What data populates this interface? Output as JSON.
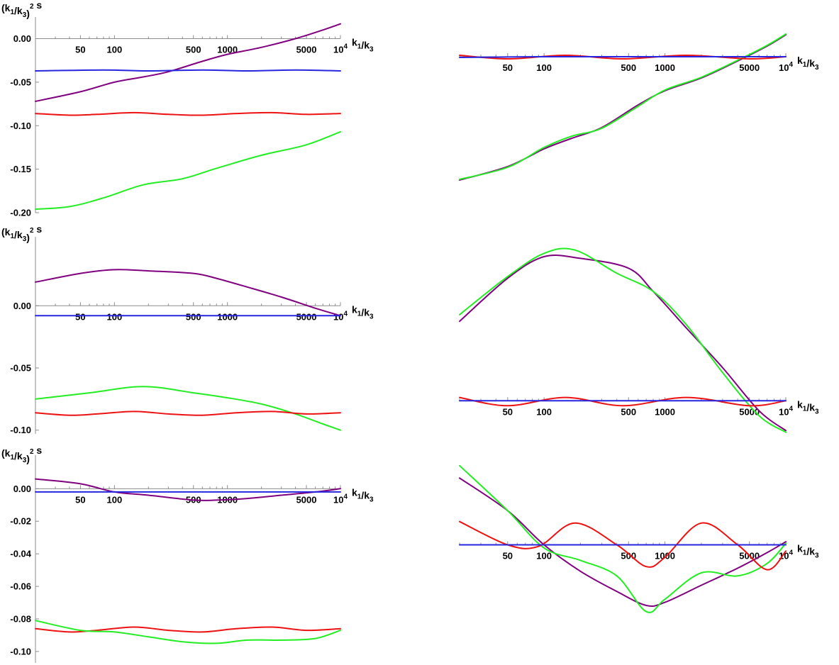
{
  "colors": {
    "purple": "#800080",
    "blue": "#2626e0",
    "red": "#ee1111",
    "green": "#22ee22",
    "axis": "#8c8c8c"
  },
  "chart_data": [
    {
      "type": "line",
      "panel": "row 1, left",
      "xscale": "log",
      "xlim": [
        20,
        10000
      ],
      "ylim": [
        -0.2,
        0.02
      ],
      "ylabel": "(k1/k3)^2 s",
      "xlabel": "k1/k3",
      "xticks": [
        "50",
        "100",
        "500",
        "1000",
        "5000",
        "10^4"
      ],
      "yticks": [
        "0.00",
        "-0.05",
        "-0.10",
        "-0.15",
        "-0.20"
      ],
      "ytick_values": [
        0,
        -0.05,
        -0.1,
        -0.15,
        -0.2
      ],
      "series": [
        {
          "color": "purple",
          "x": [
            20,
            50,
            100,
            180,
            300,
            600,
            1000,
            2000,
            4000,
            7000,
            10000
          ],
          "y": [
            -0.072,
            -0.061,
            -0.05,
            -0.044,
            -0.038,
            -0.026,
            -0.018,
            -0.01,
            0.0,
            0.01,
            0.017
          ]
        },
        {
          "color": "blue",
          "x": [
            20,
            80,
            200,
            600,
            1500,
            4000,
            10000
          ],
          "y": [
            -0.037,
            -0.036,
            -0.037,
            -0.036,
            -0.037,
            -0.036,
            -0.037
          ]
        },
        {
          "color": "red",
          "x": [
            20,
            40,
            70,
            150,
            300,
            600,
            1200,
            2500,
            5000,
            10000
          ],
          "y": [
            -0.086,
            -0.088,
            -0.087,
            -0.085,
            -0.087,
            -0.088,
            -0.086,
            -0.085,
            -0.087,
            -0.086
          ]
        },
        {
          "color": "green",
          "x": [
            20,
            40,
            80,
            180,
            400,
            800,
            2000,
            5000,
            10000
          ],
          "y": [
            -0.196,
            -0.193,
            -0.183,
            -0.168,
            -0.161,
            -0.149,
            -0.134,
            -0.122,
            -0.107
          ]
        }
      ]
    },
    {
      "type": "line",
      "panel": "row 1, right",
      "xscale": "log",
      "xlim": [
        20,
        10000
      ],
      "ylim": [
        -0.19,
        0.05
      ],
      "xlabel": "k1/k3",
      "xticks": [
        "50",
        "100",
        "500",
        "1000",
        "5000",
        "10^4"
      ],
      "series": [
        {
          "color": "purple",
          "x": [
            20,
            50,
            100,
            170,
            300,
            600,
            1000,
            2000,
            4000,
            7000,
            10000
          ],
          "y": [
            -0.174,
            -0.155,
            -0.13,
            -0.115,
            -0.1,
            -0.068,
            -0.048,
            -0.03,
            -0.006,
            0.015,
            0.031
          ]
        },
        {
          "color": "green",
          "x": [
            20,
            50,
            100,
            170,
            300,
            600,
            1000,
            2000,
            4000,
            7000,
            10000
          ],
          "y": [
            -0.173,
            -0.156,
            -0.128,
            -0.112,
            -0.101,
            -0.07,
            -0.047,
            -0.029,
            -0.005,
            0.016,
            0.032
          ]
        },
        {
          "color": "red",
          "x": [
            20,
            50,
            150,
            450,
            1500,
            5000,
            10000
          ],
          "y": [
            0.002,
            -0.003,
            0.002,
            -0.003,
            0.002,
            -0.003,
            0.0
          ]
        },
        {
          "color": "blue",
          "x": [
            20,
            100,
            1000,
            10000
          ],
          "y": [
            -0.001,
            0.0,
            0.0,
            0.0
          ]
        }
      ]
    },
    {
      "type": "line",
      "panel": "row 2, left",
      "xscale": "log",
      "xlim": [
        20,
        10000
      ],
      "ylim": [
        -0.103,
        0.052
      ],
      "ylabel": "(k1/k3)^2 s",
      "xlabel": "k1/k3",
      "xticks": [
        "50",
        "100",
        "500",
        "1000",
        "5000",
        "10^4"
      ],
      "yticks": [
        "0.00",
        "-0.05",
        "-0.10"
      ],
      "ytick_values": [
        0,
        -0.05,
        -0.1
      ],
      "series": [
        {
          "color": "purple",
          "x": [
            20,
            50,
            100,
            200,
            500,
            800,
            1500,
            3000,
            6000,
            10000
          ],
          "y": [
            0.019,
            0.026,
            0.029,
            0.028,
            0.026,
            0.022,
            0.015,
            0.007,
            -0.002,
            -0.008
          ]
        },
        {
          "color": "blue",
          "x": [
            20,
            100,
            1000,
            10000
          ],
          "y": [
            -0.008,
            -0.008,
            -0.008,
            -0.008
          ]
        },
        {
          "color": "green",
          "x": [
            20,
            60,
            180,
            500,
            1000,
            2000,
            4000,
            7000,
            10000
          ],
          "y": [
            -0.075,
            -0.07,
            -0.065,
            -0.07,
            -0.074,
            -0.079,
            -0.087,
            -0.095,
            -0.1
          ]
        },
        {
          "color": "red",
          "x": [
            20,
            40,
            70,
            150,
            300,
            600,
            1200,
            2500,
            5000,
            10000
          ],
          "y": [
            -0.086,
            -0.088,
            -0.087,
            -0.085,
            -0.087,
            -0.088,
            -0.086,
            -0.085,
            -0.087,
            -0.086
          ]
        }
      ]
    },
    {
      "type": "line",
      "panel": "row 2, right",
      "xscale": "log",
      "xlim": [
        20,
        10000
      ],
      "ylim": [
        -0.02,
        0.105
      ],
      "xlabel": "k1/k3",
      "xticks": [
        "50",
        "100",
        "500",
        "1000",
        "5000",
        "10^4"
      ],
      "series": [
        {
          "color": "purple",
          "x": [
            20,
            50,
            100,
            200,
            500,
            800,
            1500,
            3000,
            6000,
            10000
          ],
          "y": [
            0.048,
            0.074,
            0.087,
            0.086,
            0.08,
            0.066,
            0.044,
            0.02,
            -0.006,
            -0.018
          ]
        },
        {
          "color": "green",
          "x": [
            20,
            50,
            100,
            180,
            400,
            800,
            1500,
            3000,
            6000,
            10000
          ],
          "y": [
            0.052,
            0.075,
            0.089,
            0.091,
            0.077,
            0.066,
            0.046,
            0.017,
            -0.009,
            -0.019
          ]
        },
        {
          "color": "red",
          "x": [
            20,
            50,
            150,
            450,
            1500,
            5000,
            10000
          ],
          "y": [
            0.002,
            -0.003,
            0.002,
            -0.003,
            0.002,
            -0.003,
            0.0
          ]
        },
        {
          "color": "blue",
          "x": [
            20,
            100,
            1000,
            10000
          ],
          "y": [
            0.0,
            0.0,
            0.0,
            0.0
          ]
        }
      ]
    },
    {
      "type": "line",
      "panel": "row 3, left",
      "xscale": "log",
      "xlim": [
        20,
        10000
      ],
      "ylim": [
        -0.107,
        0.018
      ],
      "ylabel": "(k1/k3)^2 s",
      "xlabel": "k1/k3",
      "xticks": [
        "50",
        "100",
        "500",
        "1000",
        "5000",
        "10^4"
      ],
      "yticks": [
        "0.00",
        "-0.02",
        "-0.04",
        "-0.06",
        "-0.08",
        "-0.10"
      ],
      "ytick_values": [
        0,
        -0.02,
        -0.04,
        -0.06,
        -0.08,
        -0.1
      ],
      "series": [
        {
          "color": "purple",
          "x": [
            20,
            50,
            100,
            200,
            500,
            800,
            1500,
            3000,
            6000,
            10000
          ],
          "y": [
            0.006,
            0.003,
            -0.002,
            -0.004,
            -0.007,
            -0.007,
            -0.006,
            -0.004,
            -0.002,
            0.0
          ]
        },
        {
          "color": "blue",
          "x": [
            20,
            100,
            1000,
            10000
          ],
          "y": [
            -0.002,
            -0.002,
            -0.002,
            -0.002
          ]
        },
        {
          "color": "red",
          "x": [
            20,
            40,
            70,
            150,
            300,
            600,
            1200,
            2500,
            5000,
            10000
          ],
          "y": [
            -0.086,
            -0.088,
            -0.087,
            -0.085,
            -0.087,
            -0.088,
            -0.086,
            -0.085,
            -0.087,
            -0.086
          ]
        },
        {
          "color": "green",
          "x": [
            20,
            50,
            100,
            200,
            400,
            800,
            1500,
            3000,
            6000,
            10000
          ],
          "y": [
            -0.081,
            -0.087,
            -0.088,
            -0.091,
            -0.094,
            -0.095,
            -0.093,
            -0.093,
            -0.092,
            -0.087
          ]
        }
      ]
    },
    {
      "type": "line",
      "panel": "row 3, right",
      "xscale": "log",
      "xlim": [
        20,
        10000
      ],
      "ylim": [
        -0.06,
        0.055
      ],
      "xlabel": "k1/k3",
      "xticks": [
        "50",
        "100",
        "500",
        "1000",
        "5000",
        "10^4"
      ],
      "series": [
        {
          "color": "purple",
          "x": [
            20,
            50,
            100,
            200,
            400,
            700,
            1000,
            2000,
            4000,
            7000,
            10000
          ],
          "y": [
            0.043,
            0.022,
            0.0,
            -0.017,
            -0.03,
            -0.039,
            -0.037,
            -0.026,
            -0.015,
            -0.005,
            0.002
          ]
        },
        {
          "color": "green",
          "x": [
            20,
            50,
            100,
            200,
            400,
            700,
            1000,
            2000,
            4000,
            7000,
            10000
          ],
          "y": [
            0.051,
            0.022,
            -0.002,
            -0.01,
            -0.02,
            -0.043,
            -0.035,
            -0.018,
            -0.02,
            -0.012,
            0.001
          ]
        },
        {
          "color": "red",
          "x": [
            20,
            50,
            90,
            180,
            400,
            700,
            1000,
            2000,
            4000,
            7000,
            10000
          ],
          "y": [
            0.015,
            0.0,
            -0.001,
            0.014,
            0.0,
            -0.014,
            -0.008,
            0.014,
            0.0,
            -0.016,
            -0.004
          ]
        },
        {
          "color": "blue",
          "x": [
            20,
            100,
            1000,
            10000
          ],
          "y": [
            0.0,
            0.0,
            0.0,
            0.0
          ]
        }
      ]
    }
  ]
}
